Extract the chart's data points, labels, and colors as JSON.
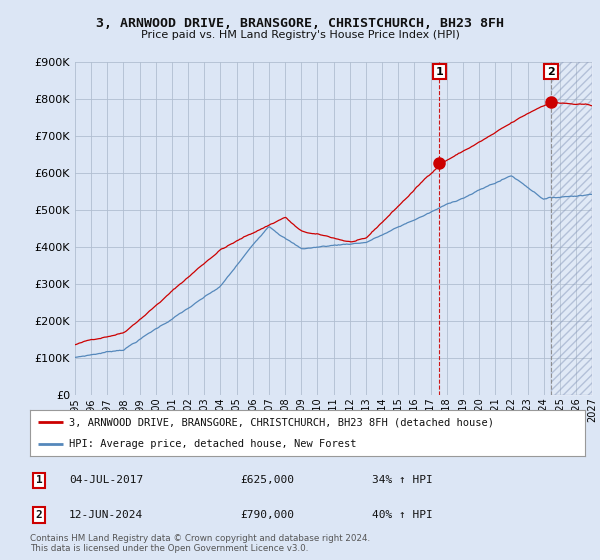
{
  "title": "3, ARNWOOD DRIVE, BRANSGORE, CHRISTCHURCH, BH23 8FH",
  "subtitle": "Price paid vs. HM Land Registry's House Price Index (HPI)",
  "property_label": "3, ARNWOOD DRIVE, BRANSGORE, CHRISTCHURCH, BH23 8FH (detached house)",
  "hpi_label": "HPI: Average price, detached house, New Forest",
  "sale1_date": "04-JUL-2017",
  "sale1_price": 625000,
  "sale1_pct": "34%",
  "sale2_date": "12-JUN-2024",
  "sale2_price": 790000,
  "sale2_pct": "40%",
  "property_color": "#cc0000",
  "hpi_color": "#5588bb",
  "background_color": "#dce6f5",
  "plot_bg_color": "#dce6f5",
  "grid_color": "#b0bed0",
  "ylim": [
    0,
    900000
  ],
  "yticks": [
    0,
    100000,
    200000,
    300000,
    400000,
    500000,
    600000,
    700000,
    800000,
    900000
  ],
  "x_start_year": 1995,
  "x_end_year": 2027,
  "sale1_year": 2017.55,
  "sale2_year": 2024.45,
  "footnote": "Contains HM Land Registry data © Crown copyright and database right 2024.\nThis data is licensed under the Open Government Licence v3.0."
}
